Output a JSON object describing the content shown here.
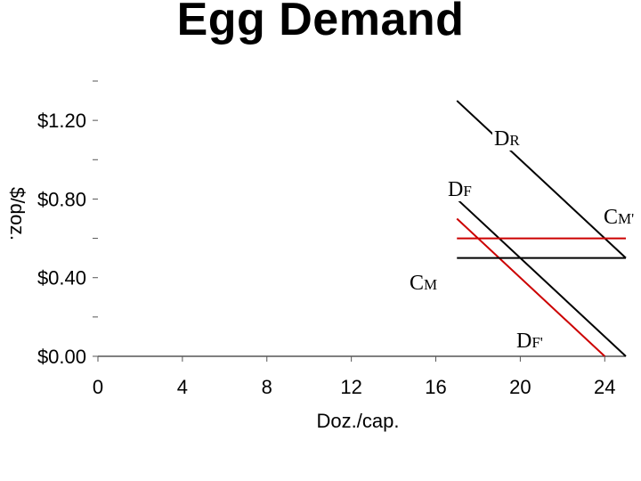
{
  "chart_data": {
    "type": "line",
    "title": "Egg Demand",
    "xlabel": "Doz./cap.",
    "ylabel": "$/doz.",
    "xlim": [
      0,
      25
    ],
    "ylim": [
      0,
      1.4
    ],
    "x_ticks": [
      0,
      4,
      8,
      12,
      16,
      20,
      24
    ],
    "x_tick_labels": [
      "0",
      "4",
      "8",
      "12",
      "16",
      "20",
      "24"
    ],
    "y_ticks": [
      0,
      0.2,
      0.4,
      0.6,
      0.8,
      1.0,
      1.2,
      1.4
    ],
    "y_tick_labels": [
      "$0.00",
      "",
      "$0.40",
      "",
      "$0.80",
      "",
      "$1.20",
      ""
    ],
    "grid": false,
    "series": [
      {
        "name": "DR",
        "color": "#000000",
        "x": [
          17,
          25
        ],
        "y": [
          1.3,
          0.5
        ]
      },
      {
        "name": "DF",
        "color": "#000000",
        "x": [
          17,
          25
        ],
        "y": [
          0.8,
          0.0
        ]
      },
      {
        "name": "DF'",
        "color": "#cc0000",
        "x": [
          17,
          24
        ],
        "y": [
          0.7,
          0.0
        ]
      },
      {
        "name": "CM",
        "color": "#000000",
        "x": [
          17,
          25
        ],
        "y": [
          0.5,
          0.5
        ]
      },
      {
        "name": "CM'",
        "color": "#cc0000",
        "x": [
          17,
          25
        ],
        "y": [
          0.6,
          0.6
        ]
      }
    ],
    "annotations": [
      {
        "text": "DR",
        "series": "DR"
      },
      {
        "text": "DF",
        "series": "DF"
      },
      {
        "text": "DF'",
        "series": "DF'"
      },
      {
        "text": "CM",
        "series": "CM"
      },
      {
        "text": "CM'",
        "series": "CM'"
      }
    ]
  }
}
